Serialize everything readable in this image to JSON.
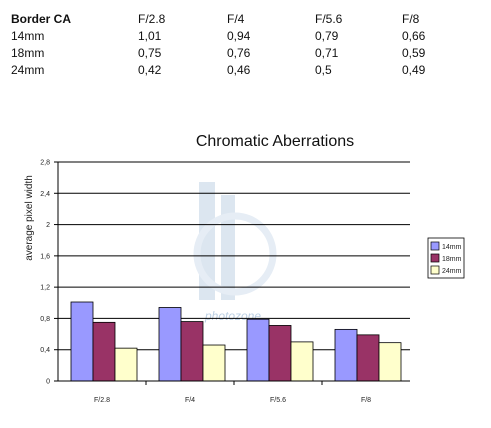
{
  "table": {
    "corner_label": "Border CA",
    "columns": [
      "F/2.8",
      "F/4",
      "F/5.6",
      "F/8"
    ],
    "rows": [
      {
        "label": "14mm",
        "values": [
          "1,01",
          "0,94",
          "0,79",
          "0,66"
        ]
      },
      {
        "label": "18mm",
        "values": [
          "0,75",
          "0,76",
          "0,71",
          "0,59"
        ]
      },
      {
        "label": "24mm",
        "values": [
          "0,42",
          "0,46",
          "0,5",
          "0,49"
        ]
      }
    ]
  },
  "watermark": {
    "text": "photozone"
  },
  "chart_data": {
    "type": "bar",
    "title": "Chromatic Aberrations",
    "xlabel": "",
    "ylabel": "average pixel width",
    "categories": [
      "F/2.8",
      "F/4",
      "F/5.6",
      "F/8"
    ],
    "series": [
      {
        "name": "14mm",
        "values": [
          1.01,
          0.94,
          0.79,
          0.66
        ],
        "color": "#9999ff"
      },
      {
        "name": "18mm",
        "values": [
          0.75,
          0.76,
          0.71,
          0.59
        ],
        "color": "#993366"
      },
      {
        "name": "24mm",
        "values": [
          0.42,
          0.46,
          0.5,
          0.49
        ],
        "color": "#ffffcc"
      }
    ],
    "ylim": [
      0,
      2.8
    ],
    "yticks": [
      0,
      0.4,
      0.8,
      1.2,
      1.6,
      2,
      2.4,
      2.8
    ],
    "ytick_labels": [
      "0",
      "0,4",
      "0,8",
      "1,2",
      "1,6",
      "2",
      "2,4",
      "2,8"
    ],
    "grid": true,
    "legend_position": "right",
    "colors": {
      "gridline": "#000000",
      "bar_outline": "#000000",
      "plot_background": "#ffffff"
    }
  }
}
